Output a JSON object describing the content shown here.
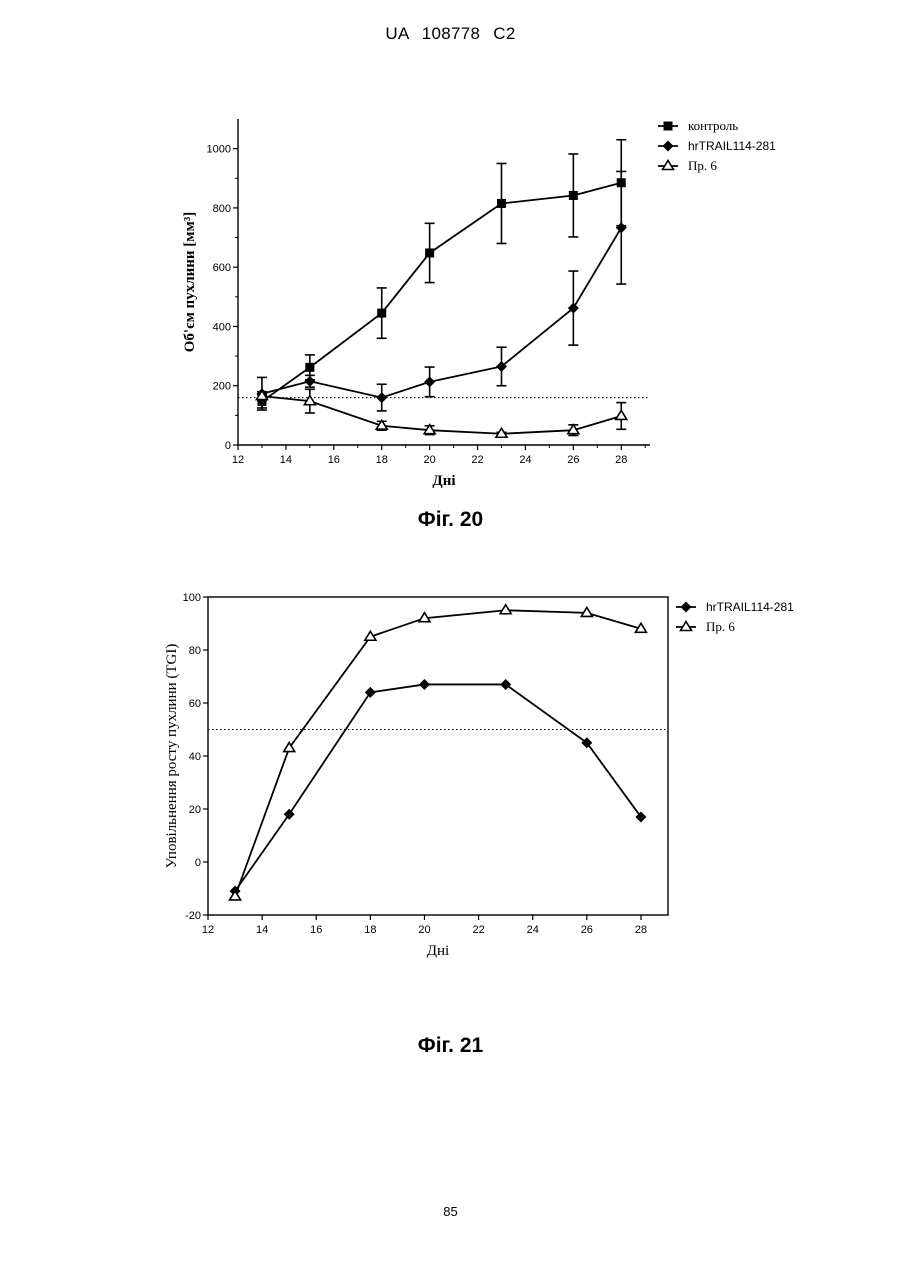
{
  "header": "UA 108778 C2",
  "page_number": "85",
  "chart_data": [
    {
      "type": "line",
      "caption": "Фіг. 20",
      "xlabel": "Дні",
      "ylabel": "Об'єм пухлини [мм³]",
      "xlim": [
        12,
        29.2
      ],
      "ylim": [
        0,
        1100
      ],
      "xticks": [
        12,
        14,
        16,
        18,
        20,
        22,
        24,
        26,
        28
      ],
      "yticks": [
        0,
        200,
        400,
        600,
        800,
        1000
      ],
      "reference_line": 160,
      "series": [
        {
          "name": "контроль",
          "marker": "square",
          "x": [
            13,
            15,
            18,
            20,
            23,
            26,
            28
          ],
          "y": [
            147,
            262,
            445,
            648,
            815,
            842,
            885
          ],
          "err": [
            22,
            42,
            85,
            100,
            135,
            140,
            145
          ]
        },
        {
          "name": "hrTRAIL114-281",
          "marker": "diamond",
          "x": [
            13,
            15,
            18,
            20,
            23,
            26,
            28
          ],
          "y": [
            173,
            215,
            160,
            213,
            265,
            462,
            733
          ],
          "err": [
            55,
            20,
            45,
            50,
            65,
            125,
            190
          ]
        },
        {
          "name": "Пр. 6",
          "marker": "triangle",
          "x": [
            13,
            15,
            18,
            20,
            23,
            26,
            28
          ],
          "y": [
            165,
            148,
            65,
            50,
            38,
            50,
            98
          ],
          "err": [
            15,
            40,
            15,
            15,
            5,
            18,
            45
          ]
        }
      ]
    },
    {
      "type": "line",
      "caption": "Фіг. 21",
      "xlabel": "Дні",
      "ylabel": "Уповільнення росту пухлини (TGI)",
      "xlim": [
        12,
        29
      ],
      "ylim": [
        -20,
        100
      ],
      "xticks": [
        12,
        14,
        16,
        18,
        20,
        22,
        24,
        26,
        28
      ],
      "yticks": [
        -20,
        0,
        20,
        40,
        60,
        80,
        100
      ],
      "reference_line": 50,
      "series": [
        {
          "name": "hrTRAIL114-281",
          "marker": "diamond",
          "x": [
            13,
            15,
            18,
            20,
            23,
            26,
            28
          ],
          "y": [
            -11,
            18,
            64,
            67,
            67,
            45,
            17
          ]
        },
        {
          "name": "Пр. 6",
          "marker": "triangle",
          "x": [
            13,
            15,
            18,
            20,
            23,
            26,
            28
          ],
          "y": [
            -13,
            43,
            85,
            92,
            95,
            94,
            88
          ]
        }
      ]
    }
  ]
}
